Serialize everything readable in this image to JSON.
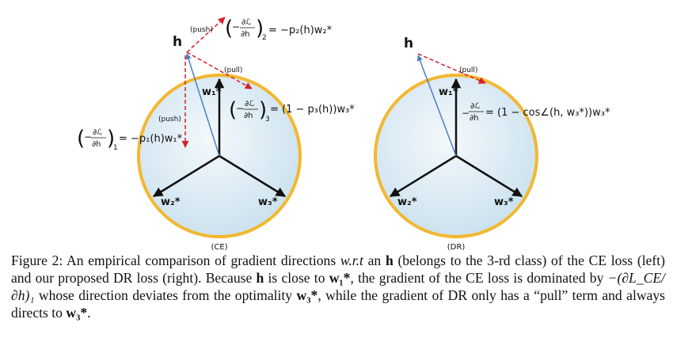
{
  "figure": {
    "left": {
      "h": "h",
      "push_top": "(push)",
      "push_left": "(push)",
      "pull": "(pull)",
      "grad_top": "= −p₂(h)w₂*",
      "grad_pull": "= (1 − p₃(h))w₃*",
      "grad_left": "= −p₁(h)w₁*",
      "sub_top": "2",
      "sub_pull": "3",
      "sub_left": "1",
      "w1": "w₁*",
      "w2": "w₂*",
      "w3": "w₃*",
      "label": "(CE)"
    },
    "right": {
      "h": "h",
      "pull": "(pull)",
      "grad": "= (1 − cos∠(h, w₃*))w₃*",
      "w1": "w₁*",
      "w2": "w₂*",
      "w3": "w₃*",
      "label": "(DR)"
    },
    "colors": {
      "circle_stroke": "#f2b830",
      "circle_fill": "#d5e8f3",
      "push_red": "#d6202a",
      "h_blue": "#4a7fc1",
      "axis_black": "#111111"
    }
  },
  "caption": {
    "prefix": "Figure 2: An empirical comparison of gradient directions",
    "wrt": "w.r.t",
    "an": "an",
    "h": "h",
    "part2": "(belongs to the 3-rd class) of the CE loss (left) and our proposed DR loss (right). Because",
    "part3": "is close to",
    "w1": "w₁*",
    "part4": ", the gradient of the CE loss is dominated by",
    "dom_term": "−(∂L_CE/∂h)₁",
    "part5": "whose direction deviates from the optimality",
    "w3": "w₃*",
    "part6": ", while the gradient of DR only has a “pull” term and always directs to",
    "w3b": "w₃*",
    "end": "."
  }
}
